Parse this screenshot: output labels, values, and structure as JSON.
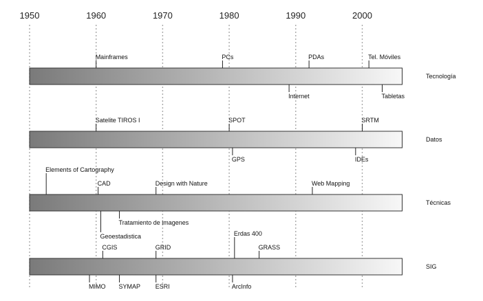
{
  "axis": {
    "years": [
      1950,
      1960,
      1970,
      1980,
      1990,
      2000
    ],
    "start_year": 1950,
    "end_year": 2006
  },
  "rows": [
    {
      "key": "tecnologia",
      "label": "Tecnología",
      "events": [
        {
          "label": "Mainframes",
          "year": 1960,
          "side": "above"
        },
        {
          "label": "PCs",
          "year": 1979,
          "side": "above"
        },
        {
          "label": "PDAs",
          "year": 1992,
          "side": "above"
        },
        {
          "label": "Tel. Móviles",
          "year": 2001,
          "side": "above"
        },
        {
          "label": "Internet",
          "year": 1989,
          "side": "below"
        },
        {
          "label": "Tabletas",
          "year": 2003,
          "side": "below"
        }
      ]
    },
    {
      "key": "datos",
      "label": "Datos",
      "events": [
        {
          "label": "Satelite TIROS I",
          "year": 1960,
          "side": "above"
        },
        {
          "label": "SPOT",
          "year": 1980,
          "side": "above"
        },
        {
          "label": "SRTM",
          "year": 2000,
          "side": "above"
        },
        {
          "label": "GPS",
          "year": 1980.5,
          "side": "below"
        },
        {
          "label": "IDEs",
          "year": 1999,
          "side": "below"
        }
      ]
    },
    {
      "key": "tecnicas",
      "label": "Técnicas",
      "events": [
        {
          "label": "Elements of Cartography",
          "year": 1952.5,
          "side": "above",
          "stem": "long"
        },
        {
          "label": "CAD",
          "year": 1960.3,
          "side": "above"
        },
        {
          "label": "Design with Nature",
          "year": 1969,
          "side": "above"
        },
        {
          "label": "Web Mapping",
          "year": 1992.5,
          "side": "above"
        },
        {
          "label": "Tratamiento de imagenes",
          "year": 1963.5,
          "side": "below"
        },
        {
          "label": "Geoestadistica",
          "year": 1960.7,
          "side": "below",
          "stem": "long"
        }
      ]
    },
    {
      "key": "sig",
      "label": "SIG",
      "events": [
        {
          "label": "CGIS",
          "year": 1961,
          "side": "above"
        },
        {
          "label": "GRID",
          "year": 1969,
          "side": "above"
        },
        {
          "label": "Erdas 400",
          "year": 1980.8,
          "side": "above",
          "stem": "long"
        },
        {
          "label": "GRASS",
          "year": 1984.5,
          "side": "above"
        },
        {
          "label": "MIMO",
          "year": 1959,
          "side": "below"
        },
        {
          "label": "SYMAP",
          "year": 1963.5,
          "side": "below"
        },
        {
          "label": "ESRI",
          "year": 1969,
          "side": "below"
        },
        {
          "label": "ArcInfo",
          "year": 1980.5,
          "side": "below"
        }
      ]
    }
  ],
  "colors": {
    "band_start": "#7a7a7a",
    "band_end": "#f7f7f7",
    "band_border": "#333333",
    "gridline": "#a8a8a8",
    "text": "#111111"
  }
}
